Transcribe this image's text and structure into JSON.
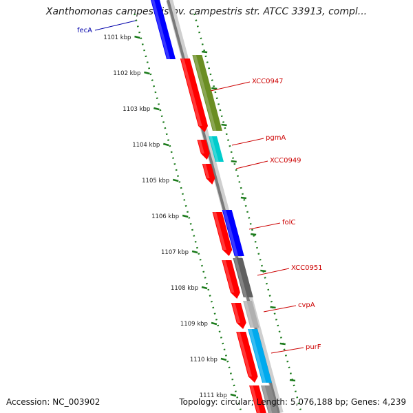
{
  "title": "Xanthomonas campestris pv. campestris str. ATCC 33913, compl...",
  "accession": "Accession: NC_003902",
  "summary": "Topology: circular; Length: 5,076,188 bp; Genes: 4,239",
  "ticks": [
    {
      "label": "1101 kbp"
    },
    {
      "label": "1102 kbp"
    },
    {
      "label": "1103 kbp"
    },
    {
      "label": "1104 kbp"
    },
    {
      "label": "1105 kbp"
    },
    {
      "label": "1106 kbp"
    },
    {
      "label": "1107 kbp"
    },
    {
      "label": "1108 kbp"
    },
    {
      "label": "1109 kbp"
    },
    {
      "label": "1110 kbp"
    },
    {
      "label": "1111 kbp"
    }
  ],
  "genes": [
    {
      "name": "fecA",
      "color": "#0000ff"
    },
    {
      "name": "XCC0947",
      "color": "#6b8e23"
    },
    {
      "name": "pgmA",
      "color": "#00cccc"
    },
    {
      "name": "XCC0949",
      "color": "#ff0000"
    },
    {
      "name": "folC",
      "color": "#0000ff"
    },
    {
      "name": "XCC0951",
      "color": "#606060"
    },
    {
      "name": "cvpA",
      "color": "#b0b0b0"
    },
    {
      "name": "purF",
      "color": "#00aaee"
    }
  ],
  "colors": {
    "cds": "#ff0000",
    "tick": "#1a7a1a",
    "label_forward": "#cc0000",
    "label_reverse": "#0000aa",
    "backbone": "#888888"
  }
}
